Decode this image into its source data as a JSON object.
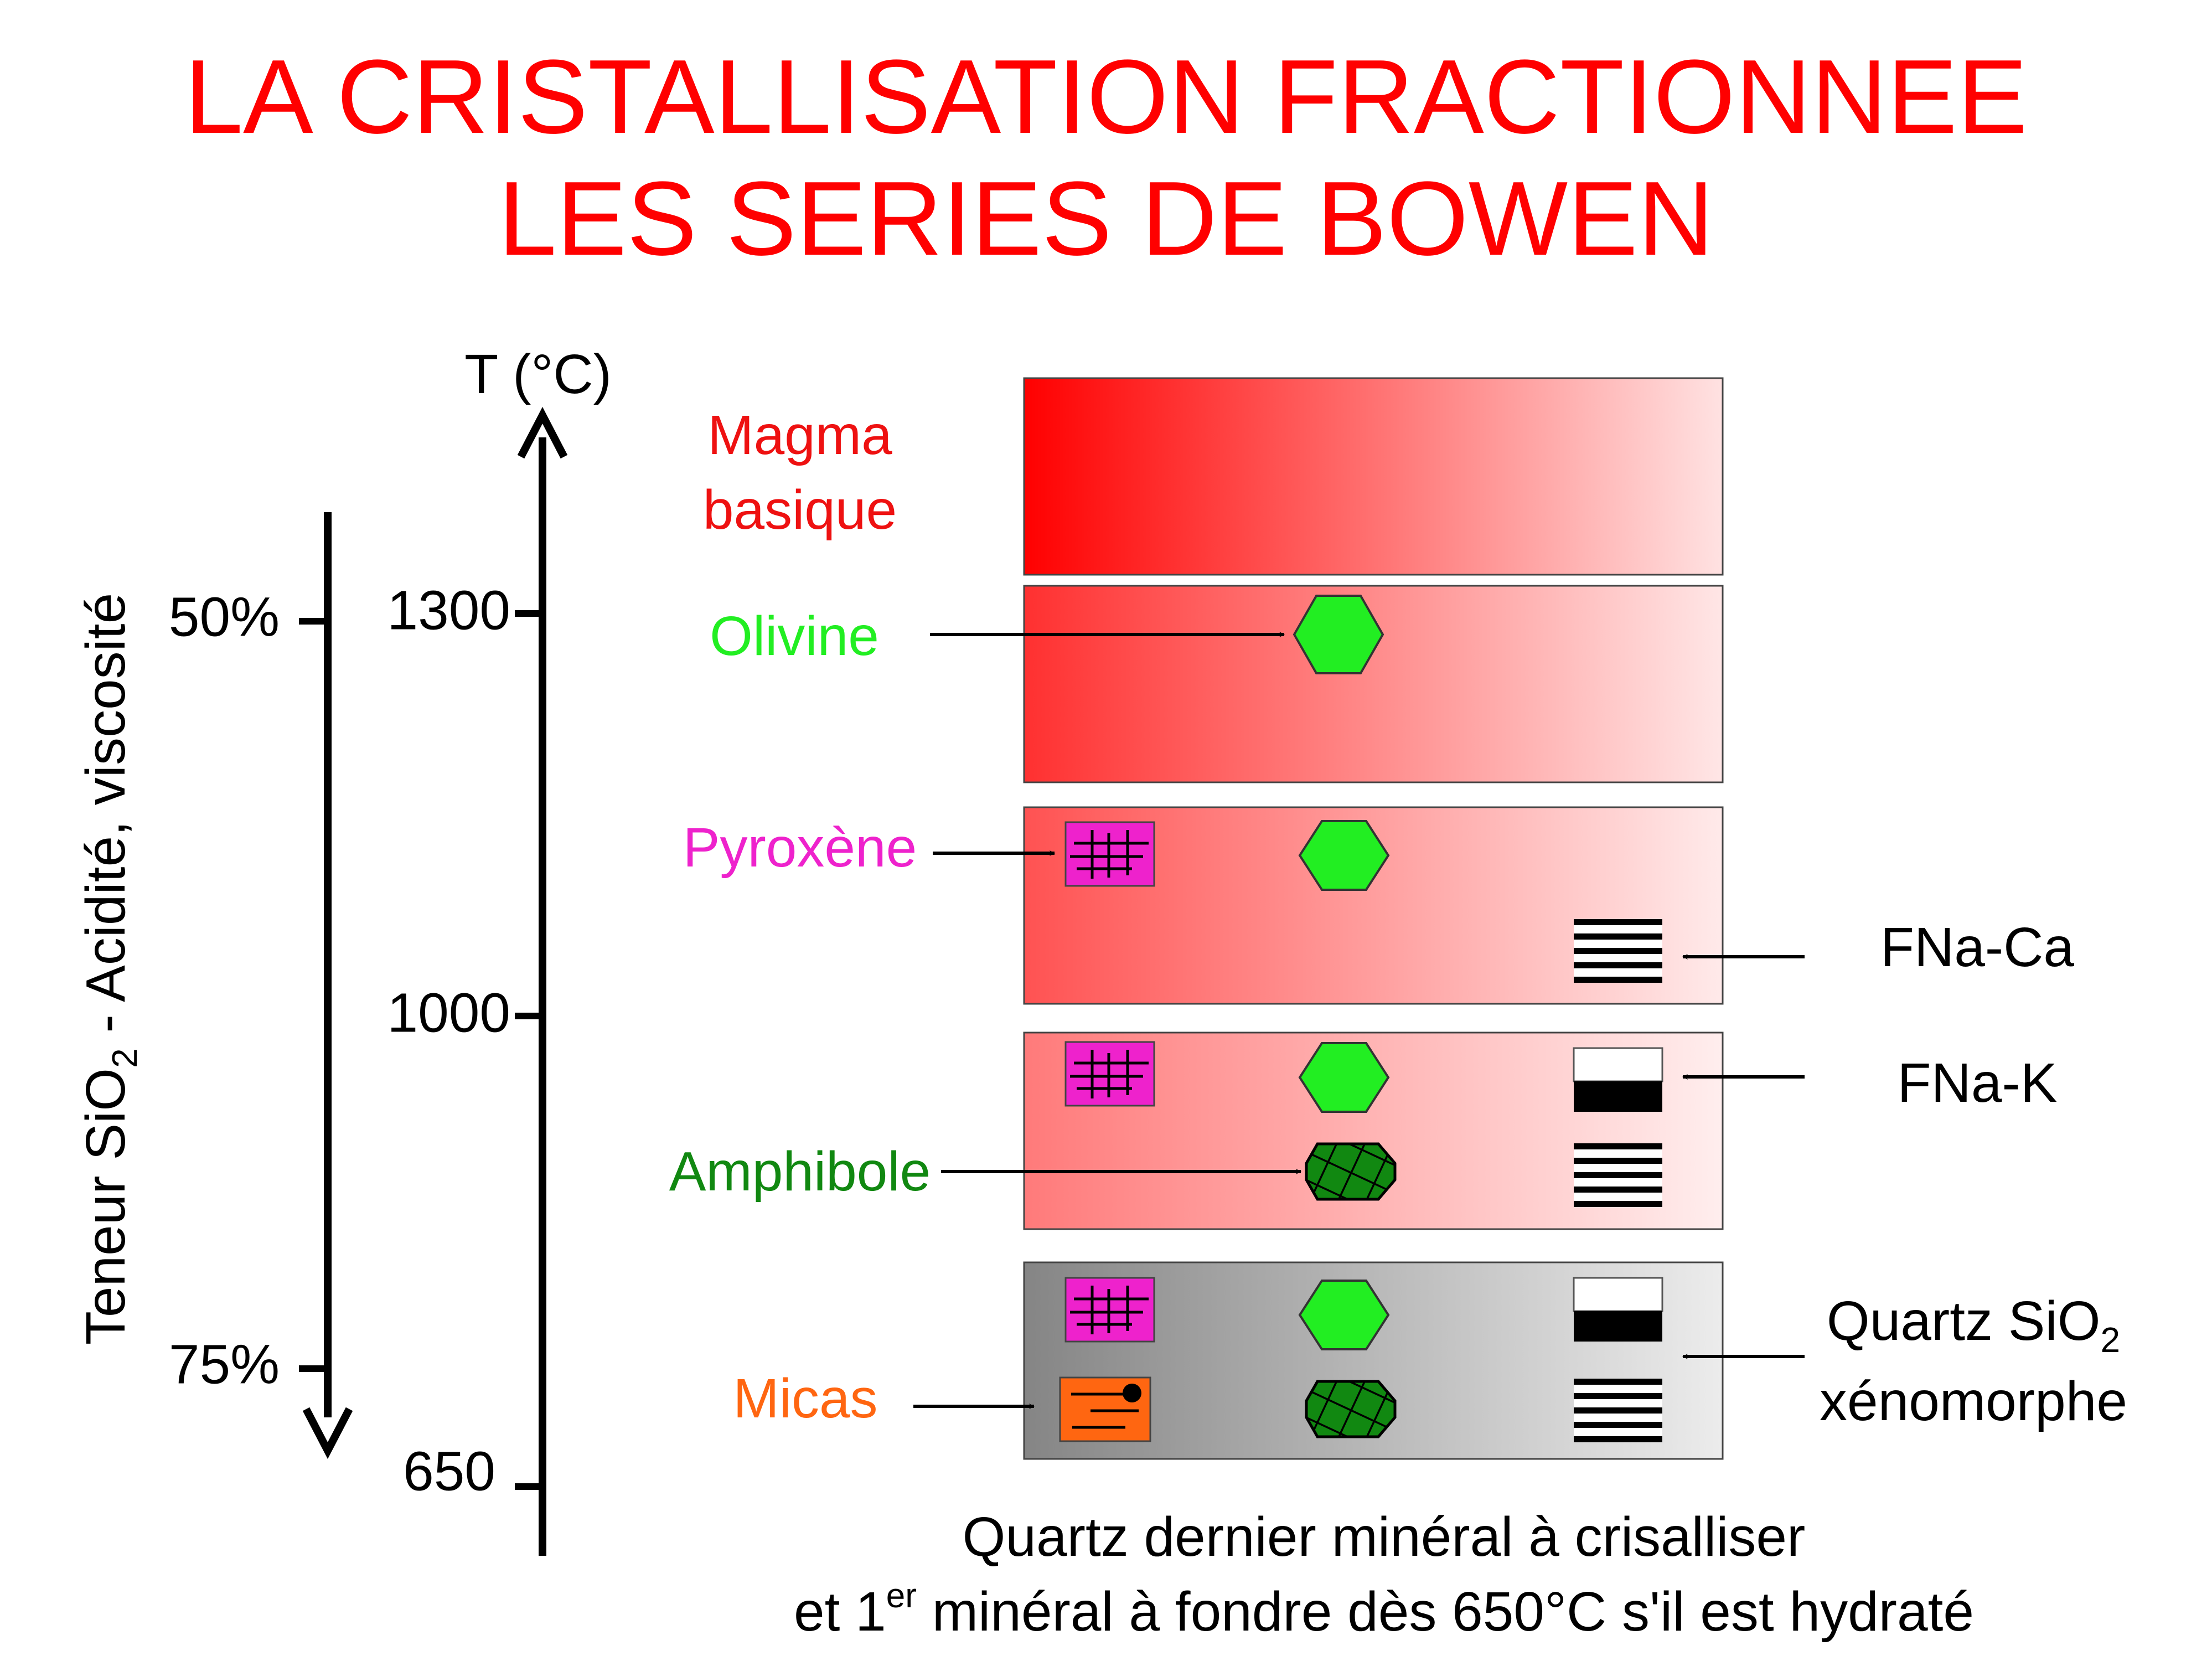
{
  "title": {
    "line1": "LA CRISTALLISATION FRACTIONNEE",
    "line2": "LES SERIES DE BOWEN"
  },
  "axes": {
    "temperature": {
      "label": "T (°C)",
      "ticks": [
        "1300",
        "1000",
        "650"
      ]
    },
    "silica": {
      "label_prefix": "Teneur SiO",
      "label_subscript": "2",
      "label_suffix": " - Acidité, viscosité",
      "ticks": [
        "50%",
        "75%"
      ]
    }
  },
  "stages": {
    "magma": {
      "label_line1": "Magma",
      "label_line2": "basique"
    },
    "olivine": {
      "label": "Olivine"
    },
    "pyroxene": {
      "label": "Pyroxène"
    },
    "amphibole": {
      "label": "Amphibole"
    },
    "micas": {
      "label": "Micas"
    }
  },
  "right_labels": {
    "fna_ca": "FNa-Ca",
    "fna_k": "FNa-K",
    "quartz_prefix": "Quartz SiO",
    "quartz_subscript": "2",
    "quartz_line2": "xénomorphe"
  },
  "footer": {
    "line1": "Quartz dernier minéral à crisalliser",
    "line2_prefix": "et 1",
    "line2_superscript": "er",
    "line2_suffix": " minéral à fondre dès 650°C s'il est hydraté"
  },
  "colors": {
    "title": "#ff0000",
    "magma_label": "#ee1111",
    "olivine": "#22ee22",
    "pyroxene": "#ee22cc",
    "amphibole": "#118811",
    "micas": "#ff6611",
    "text": "#000000"
  },
  "icons": {
    "olivine": "green-hexagon-icon",
    "pyroxene": "magenta-cleavage-grid-icon",
    "amphibole": "dark-green-crosshatch-icon",
    "plagioclase_ca": "striped-feldspar-icon",
    "feldspar_k": "two-tone-feldspar-icon",
    "mica": "orange-mica-icon"
  }
}
